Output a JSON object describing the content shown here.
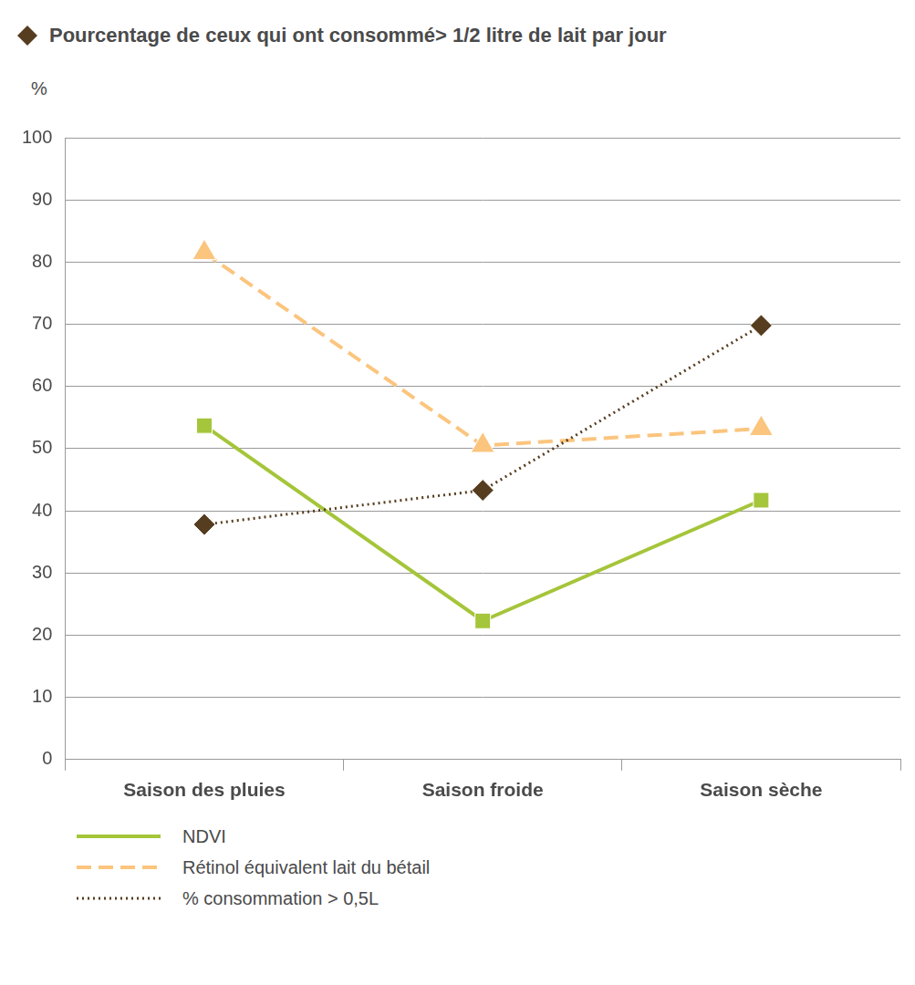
{
  "chart_data": {
    "type": "line",
    "title": "Pourcentage de ceux qui ont consommé> 1/2 litre de lait par jour",
    "y_label": "%",
    "categories": [
      "Saison des pluies",
      "Saison froide",
      "Saison sèche"
    ],
    "series": [
      {
        "name": "NDVI",
        "color": "#a5c53a",
        "marker": "square",
        "line_style": "solid",
        "values": [
          53.7,
          22.3,
          41.7
        ]
      },
      {
        "name": "Rétinol équivalent lait du bétail",
        "color": "#fbc57e",
        "marker": "triangle",
        "line_style": "dashed",
        "values": [
          81.5,
          50.5,
          53.2
        ]
      },
      {
        "name": "% consommation > 0,5L",
        "color": "#563d1f",
        "marker": "diamond",
        "line_style": "dotted",
        "values": [
          37.8,
          43.3,
          69.8
        ]
      }
    ],
    "ylim": [
      0,
      100
    ],
    "yticks": [
      0,
      10,
      20,
      30,
      40,
      50,
      60,
      70,
      80,
      90,
      100
    ],
    "grid": true,
    "legend": "bottom"
  }
}
